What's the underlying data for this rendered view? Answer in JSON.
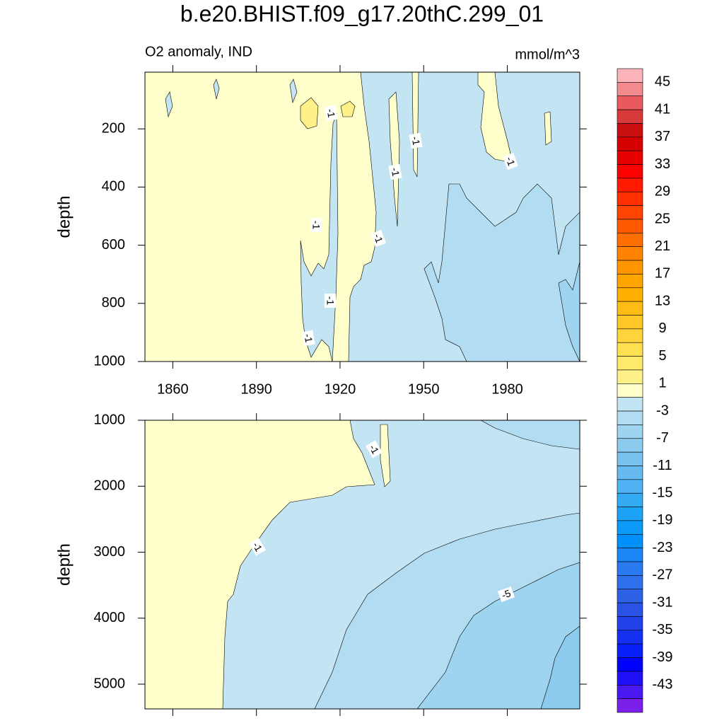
{
  "title": "b.e20.BHIST.f09_g17.20thC.299_01",
  "colorbar": {
    "levels": [
      45,
      43,
      41,
      39,
      37,
      35,
      33,
      31,
      29,
      27,
      25,
      23,
      21,
      19,
      17,
      15,
      13,
      11,
      9,
      7,
      5,
      3,
      1,
      -1,
      -3,
      -5,
      -7,
      -9,
      -11,
      -13,
      -15,
      -17,
      -19,
      -21,
      -23,
      -25,
      -27,
      -29,
      -31,
      -33,
      -35,
      -37,
      -39,
      -41,
      -43,
      -45
    ],
    "colors": [
      "#fbb4b9",
      "#f38a8d",
      "#e85a5d",
      "#d83a3a",
      "#c80e0e",
      "#d50000",
      "#e60000",
      "#ff0000",
      "#ff1a00",
      "#ff2f00",
      "#ff4500",
      "#ff5a00",
      "#ff6e00",
      "#ff8200",
      "#ff9600",
      "#ffa500",
      "#ffb000",
      "#ffbc14",
      "#ffc828",
      "#ffd43c",
      "#ffe050",
      "#ffe968",
      "#fff18a",
      "#ffffcc",
      "#c3e4f2",
      "#b1dcf1",
      "#9ed4ef",
      "#8ccbee",
      "#79c2ee",
      "#66baef",
      "#4fb2f2",
      "#32aaf4",
      "#1ca2f7",
      "#0c9af9",
      "#0090fb",
      "#1a86f7",
      "#2a7bf0",
      "#2e70eb",
      "#2e62e6",
      "#2a52e4",
      "#2241e8",
      "#1530f0",
      "#0a20f8",
      "#0000ff",
      "#2010f8",
      "#4a18f0",
      "#7a20e8"
    ],
    "label_every": 2
  },
  "chart_data": [
    {
      "type": "contour",
      "left_label": "O2 anomaly, IND",
      "right_label": "mmol/m^3",
      "ylabel": "depth",
      "xlim": [
        1850,
        2006
      ],
      "xticks": [
        1860,
        1890,
        1920,
        1950,
        1980
      ],
      "xtick_labels": true,
      "ylim": [
        1000,
        5
      ],
      "yticks": [
        200,
        400,
        600,
        800,
        1000
      ],
      "contour_labels": [
        -1,
        -1,
        -1,
        -1,
        -1,
        -1,
        -1,
        -1
      ]
    },
    {
      "type": "contour",
      "ylabel": "depth",
      "xlim": [
        1850,
        2006
      ],
      "xticks": [
        1860,
        1890,
        1920,
        1950,
        1980
      ],
      "xtick_labels": false,
      "ylim": [
        5375,
        1000
      ],
      "yticks": [
        1000,
        2000,
        3000,
        4000,
        5000
      ],
      "contour_labels": [
        -1,
        -1,
        -5
      ]
    }
  ]
}
